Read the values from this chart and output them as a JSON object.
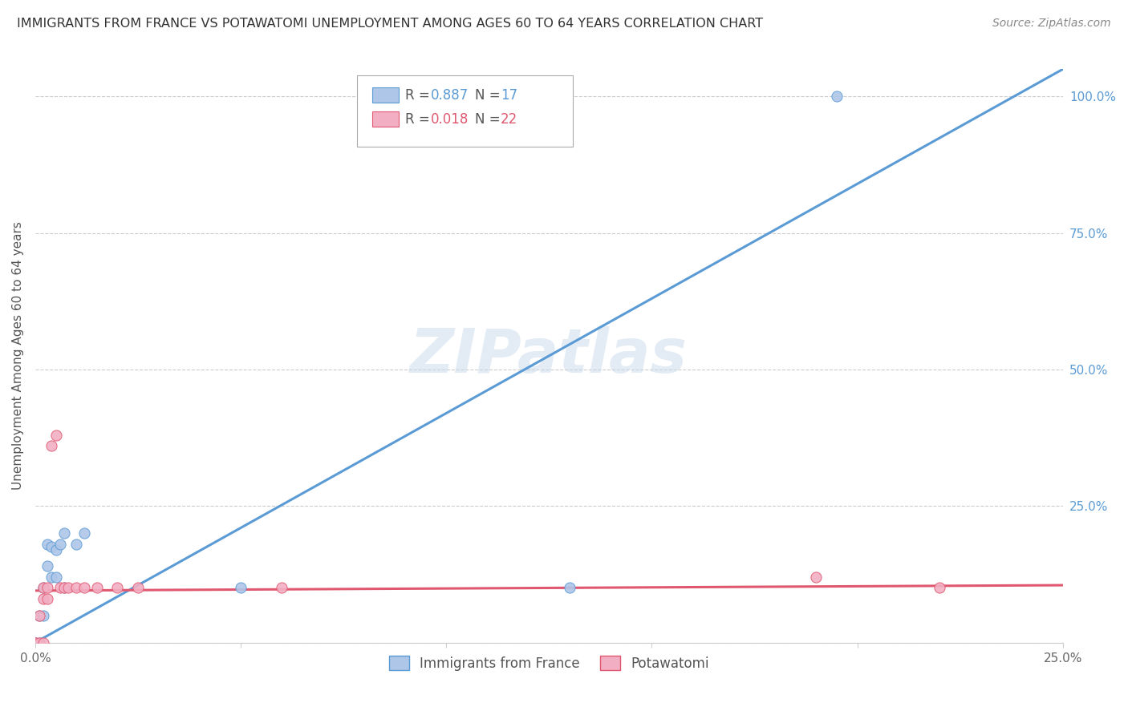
{
  "title": "IMMIGRANTS FROM FRANCE VS POTAWATOMI UNEMPLOYMENT AMONG AGES 60 TO 64 YEARS CORRELATION CHART",
  "source": "Source: ZipAtlas.com",
  "ylabel": "Unemployment Among Ages 60 to 64 years",
  "xlim": [
    0.0,
    0.25
  ],
  "ylim": [
    0.0,
    1.05
  ],
  "xticks": [
    0.0,
    0.05,
    0.1,
    0.15,
    0.2,
    0.25
  ],
  "xticklabels": [
    "0.0%",
    "",
    "",
    "",
    "",
    "25.0%"
  ],
  "yticks": [
    0.0,
    0.25,
    0.5,
    0.75,
    1.0
  ],
  "yticklabels": [
    "",
    "25.0%",
    "50.0%",
    "75.0%",
    "100.0%"
  ],
  "series1_color": "#aec6e8",
  "series2_color": "#f2afc4",
  "line1_color": "#5b9bd5",
  "line2_color": "#e05870",
  "watermark": "ZIPatlas",
  "france_x": [
    0.0,
    0.001,
    0.001,
    0.002,
    0.002,
    0.003,
    0.003,
    0.004,
    0.004,
    0.005,
    0.005,
    0.006,
    0.007,
    0.007,
    0.01,
    0.012,
    0.05,
    0.13,
    0.195
  ],
  "france_y": [
    0.0,
    0.0,
    0.05,
    0.05,
    0.1,
    0.14,
    0.18,
    0.12,
    0.175,
    0.12,
    0.17,
    0.18,
    0.1,
    0.2,
    0.18,
    0.2,
    0.1,
    0.1,
    1.0
  ],
  "potawatomi_x": [
    0.0,
    0.0,
    0.001,
    0.001,
    0.002,
    0.002,
    0.002,
    0.003,
    0.003,
    0.004,
    0.005,
    0.006,
    0.007,
    0.008,
    0.01,
    0.012,
    0.015,
    0.02,
    0.025,
    0.06,
    0.19,
    0.22
  ],
  "potawatomi_y": [
    0.0,
    0.0,
    0.0,
    0.05,
    0.0,
    0.08,
    0.1,
    0.1,
    0.08,
    0.36,
    0.38,
    0.1,
    0.1,
    0.1,
    0.1,
    0.1,
    0.1,
    0.1,
    0.1,
    0.1,
    0.12,
    0.1
  ],
  "line1_x0": 0.0,
  "line1_y0": 0.0,
  "line1_x1": 0.25,
  "line1_y1": 1.05,
  "line2_x0": 0.0,
  "line2_y0": 0.095,
  "line2_x1": 0.25,
  "line2_y1": 0.105
}
